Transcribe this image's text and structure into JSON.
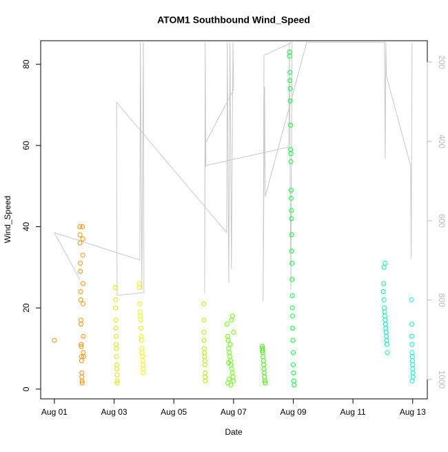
{
  "chart_data": {
    "type": "scatter",
    "title": "ATOM1 Southbound Wind_Speed",
    "x_label": "Date",
    "y_label": "Wind_Speed",
    "xlim": [
      0.54,
      13.49
    ],
    "ylim": [
      -2.4,
      85.8
    ],
    "y2lim": [
      1049,
      146
    ],
    "xticks": [
      {
        "value": 1,
        "label": "Aug 01"
      },
      {
        "value": 3,
        "label": "Aug 03"
      },
      {
        "value": 5,
        "label": "Aug 05"
      },
      {
        "value": 7,
        "label": "Aug 07"
      },
      {
        "value": 9,
        "label": "Aug 09"
      },
      {
        "value": 11,
        "label": "Aug 11"
      },
      {
        "value": 13,
        "label": "Aug 13"
      }
    ],
    "yticks": [
      0,
      20,
      40,
      60,
      80
    ],
    "y2ticks": [
      200,
      400,
      600,
      800,
      1000
    ],
    "y2_color": "#bbbbbb",
    "grid": false,
    "series": [
      {
        "color": "#ff8c00",
        "x": [
          1.0,
          1.85,
          1.86,
          1.86,
          1.87,
          1.87,
          1.88,
          1.88,
          1.89,
          1.89,
          1.9,
          1.9,
          1.91,
          1.91,
          1.92,
          1.92,
          1.93,
          1.93,
          1.94,
          1.95,
          1.95,
          1.96,
          1.96,
          1.97,
          1.97,
          1.98
        ],
        "values": [
          12,
          40,
          38,
          36,
          31,
          29,
          24,
          22,
          17,
          16,
          11,
          10.5,
          8,
          7,
          4,
          3,
          2,
          1.5,
          40,
          37,
          33,
          26,
          21,
          13,
          9,
          8
        ]
      },
      {
        "color": "#e0e000",
        "x": [
          3.04,
          3.05,
          3.05,
          3.06,
          3.06,
          3.07,
          3.07,
          3.08,
          3.08,
          3.09,
          3.09,
          3.1,
          3.1,
          3.11
        ],
        "values": [
          25,
          22,
          20,
          17,
          15,
          13,
          11,
          10,
          8,
          6,
          5,
          3.5,
          2,
          1.5
        ]
      },
      {
        "color": "#e8f800",
        "x": [
          3.84,
          3.85,
          3.86,
          3.87,
          3.88,
          3.89,
          3.9,
          3.91,
          3.92,
          3.93,
          3.94,
          3.95,
          3.96,
          3.97,
          3.98,
          3.98
        ],
        "values": [
          25,
          26,
          21,
          19,
          18,
          17,
          15,
          13,
          12,
          10,
          9,
          8,
          7,
          6,
          5,
          4
        ]
      },
      {
        "color": "#a8f000",
        "x": [
          6.0,
          6.01,
          6.01,
          6.02,
          6.02,
          6.03,
          6.03,
          6.04,
          6.04,
          6.05,
          6.05,
          6.06
        ],
        "values": [
          21,
          17,
          14,
          12,
          10,
          9,
          8,
          7,
          6,
          4,
          3,
          2
        ]
      },
      {
        "color": "#60ff00",
        "x": [
          6.78,
          6.8,
          6.82,
          6.84,
          6.86,
          6.88,
          6.9,
          6.92,
          6.94,
          6.96,
          6.98,
          7.0,
          6.81,
          6.85,
          6.89,
          6.93,
          6.97,
          7.0,
          6.83,
          6.91
        ],
        "values": [
          16,
          13,
          12,
          10,
          9,
          8,
          7,
          6,
          5,
          4,
          3,
          2,
          1.5,
          2.5,
          11,
          17,
          18,
          14,
          6.5,
          1
        ]
      },
      {
        "color": "#40f000",
        "x": [
          7.96,
          7.97,
          7.98,
          7.99,
          8.0,
          8.01,
          8.02,
          8.03,
          8.04,
          8.05,
          8.06,
          7.98
        ],
        "values": [
          10.5,
          9.5,
          9,
          8,
          7,
          6,
          5,
          4,
          3,
          2,
          1.5,
          10
        ]
      },
      {
        "color": "#00ff30",
        "x": [
          8.88,
          8.88,
          8.89,
          8.89,
          8.9,
          8.9,
          8.91,
          8.91,
          8.92,
          8.92,
          8.93,
          8.93,
          8.94,
          8.94,
          8.95,
          8.95,
          8.96,
          8.96,
          8.97,
          8.97,
          8.98,
          8.98,
          8.99,
          9.0,
          9.0,
          9.01,
          9.02,
          9.03
        ],
        "values": [
          83,
          82,
          78,
          76,
          74,
          71,
          65,
          59,
          58,
          56,
          49,
          47,
          44,
          42,
          38,
          34,
          31,
          27,
          23,
          20,
          18,
          15,
          12,
          9,
          6,
          4,
          2,
          1
        ]
      },
      {
        "color": "#00f0b0",
        "x": [
          12.02,
          12.03,
          12.04,
          12.05,
          12.06,
          12.07,
          12.08,
          12.09,
          12.1,
          12.11,
          12.12,
          12.13,
          12.14,
          12.15,
          12.04,
          12.08
        ],
        "values": [
          24,
          26,
          22,
          20,
          19,
          18,
          17,
          16,
          15,
          14,
          13,
          12,
          11,
          9,
          30,
          31
        ]
      },
      {
        "color": "#00f0d0",
        "x": [
          12.96,
          12.97,
          12.97,
          12.98,
          12.98,
          12.99,
          12.99,
          13.0,
          13.0,
          13.01,
          13.01,
          12.98
        ],
        "values": [
          22,
          16,
          13,
          11,
          9,
          8,
          7,
          6,
          5,
          4,
          3,
          2
        ]
      },
      {
        "color": "#c8c8c8",
        "mode": "line",
        "axis": "y2",
        "x": [
          1.85,
          1.0,
          3.86,
          3.88,
          3.93,
          3.98,
          4.0,
          3.1,
          3.08,
          6.77,
          6.79,
          6.84,
          6.88,
          6.93,
          6.98,
          7.0,
          6.05,
          6.03,
          6.05,
          6.07,
          8.85,
          8.87,
          8.92,
          8.96,
          8.02,
          7.99,
          8.04,
          8.06,
          9.45,
          12.05,
          12.08,
          12.1,
          12.12,
          12.93,
          12.95,
          12.98
        ],
        "values": [
          748,
          630,
          699,
          150,
          774,
          150,
          781,
          788,
          301,
          630,
          150,
          757,
          150,
          722,
          150,
          270,
          405,
          783,
          150,
          461,
          414,
          150,
          774,
          150,
          183,
          803,
          261,
          539,
          150,
          150,
          443,
          150,
          235,
          461,
          696,
          150
        ]
      }
    ]
  }
}
